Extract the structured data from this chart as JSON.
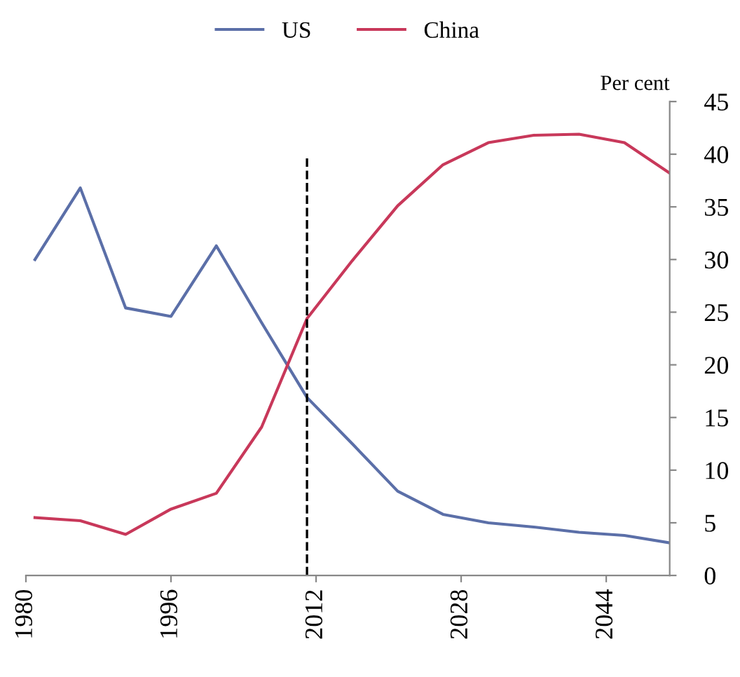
{
  "chart_data": {
    "type": "line",
    "x": [
      1981,
      1986,
      1991,
      1996,
      2001,
      2006,
      2011,
      2016,
      2021,
      2026,
      2031,
      2036,
      2041,
      2046,
      2051
    ],
    "series": [
      {
        "name": "US",
        "color": "#5b6fa8",
        "values": [
          30.0,
          36.8,
          25.4,
          24.6,
          31.3,
          24.0,
          16.9,
          12.5,
          8.0,
          5.8,
          5.0,
          4.6,
          4.1,
          3.8,
          3.1
        ]
      },
      {
        "name": "China",
        "color": "#c8385a",
        "values": [
          5.5,
          5.2,
          3.9,
          6.3,
          7.8,
          14.1,
          24.4,
          29.9,
          35.1,
          39.0,
          41.1,
          41.8,
          41.9,
          41.1,
          38.2
        ]
      }
    ],
    "ylabel": "Per cent",
    "xlim": [
      1980,
      2051
    ],
    "xticks": [
      1980,
      1996,
      2012,
      2028,
      2044
    ],
    "ylim": [
      0,
      45
    ],
    "yticks": [
      0,
      5,
      10,
      15,
      20,
      25,
      30,
      35,
      40,
      45
    ],
    "ref_lines": [
      {
        "axis": "x",
        "value": 2011,
        "label": null,
        "color": "#000000",
        "line_style": "dashed"
      }
    ],
    "legend": "top",
    "grid": false,
    "marker": "none",
    "line_style": "solid"
  }
}
